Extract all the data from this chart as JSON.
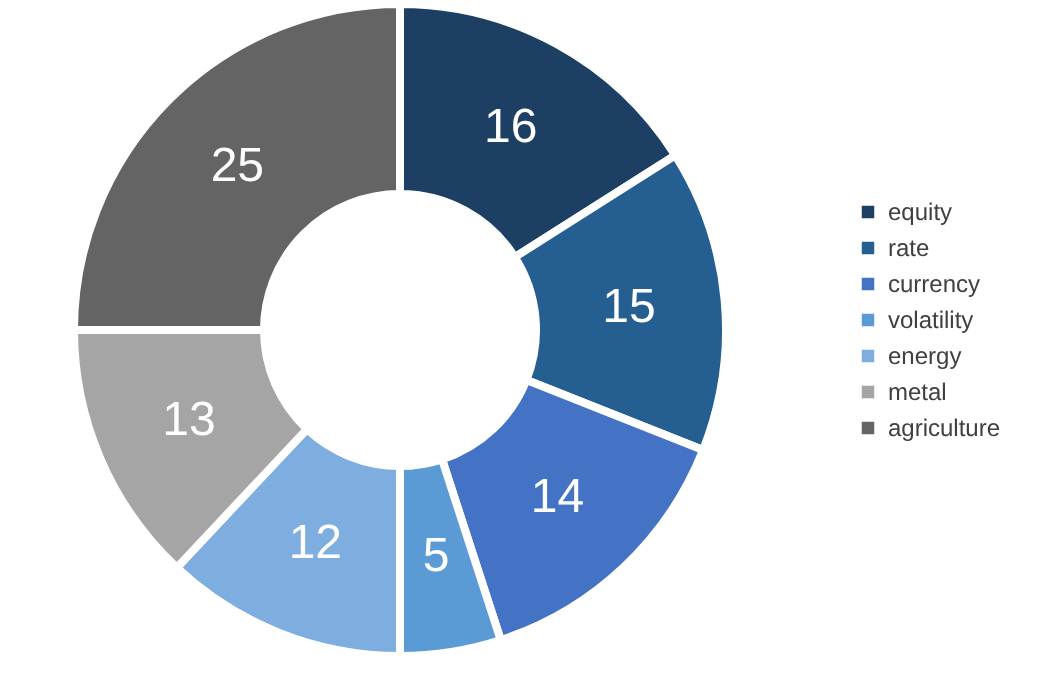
{
  "chart_data": {
    "type": "donut",
    "categories": [
      "equity",
      "rate",
      "currency",
      "volatility",
      "energy",
      "metal",
      "agriculture"
    ],
    "values": [
      16,
      15,
      14,
      5,
      12,
      13,
      25
    ],
    "colors": [
      "#1c3f63",
      "#255e91",
      "#4472c4",
      "#5b9bd5",
      "#7eaedf",
      "#a5a5a5",
      "#646464"
    ],
    "data_labels": true,
    "legend": "right"
  }
}
